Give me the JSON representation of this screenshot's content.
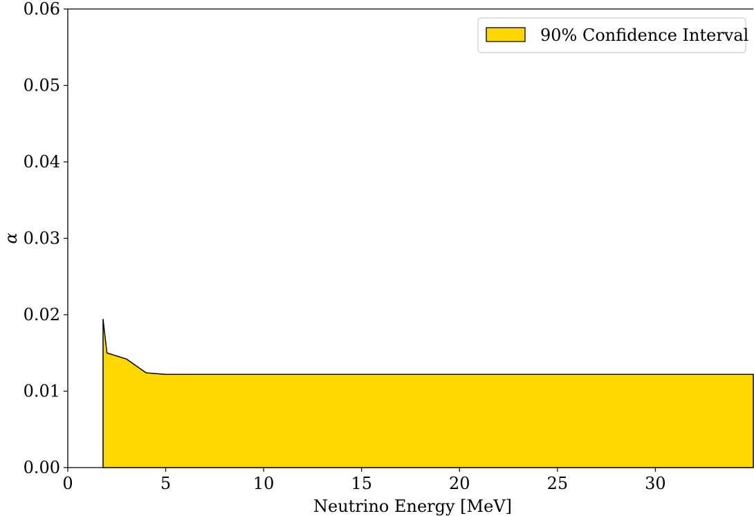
{
  "chart_data": {
    "type": "area",
    "title": "",
    "xlabel": "Neutrino Energy [MeV]",
    "ylabel": "α",
    "xlim": [
      0,
      35
    ],
    "ylim": [
      0,
      0.06
    ],
    "x_ticks": [
      0,
      5,
      10,
      15,
      20,
      25,
      30
    ],
    "x_tick_labels": [
      "0",
      "5",
      "10",
      "15",
      "20",
      "25",
      "30"
    ],
    "y_ticks": [
      0,
      0.01,
      0.02,
      0.03,
      0.04,
      0.05,
      0.06
    ],
    "y_tick_labels": [
      "0.00",
      "0.01",
      "0.02",
      "0.03",
      "0.04",
      "0.05",
      "0.06"
    ],
    "grid": false,
    "legend": {
      "position": "top-right"
    },
    "series": [
      {
        "name": "90% Confidence Interval",
        "color": "#FFD700",
        "edge_color": "#000000",
        "x": [
          1.8,
          1.8,
          2.0,
          3.0,
          4.0,
          5.0,
          10.0,
          15.0,
          20.0,
          25.0,
          30.0,
          35.0
        ],
        "y_lower": [
          0,
          0,
          0,
          0,
          0,
          0,
          0,
          0,
          0,
          0,
          0,
          0
        ],
        "y_upper": [
          0,
          0.0194,
          0.015,
          0.0142,
          0.0124,
          0.0122,
          0.0122,
          0.0122,
          0.0122,
          0.0122,
          0.0122,
          0.0122
        ]
      }
    ]
  }
}
